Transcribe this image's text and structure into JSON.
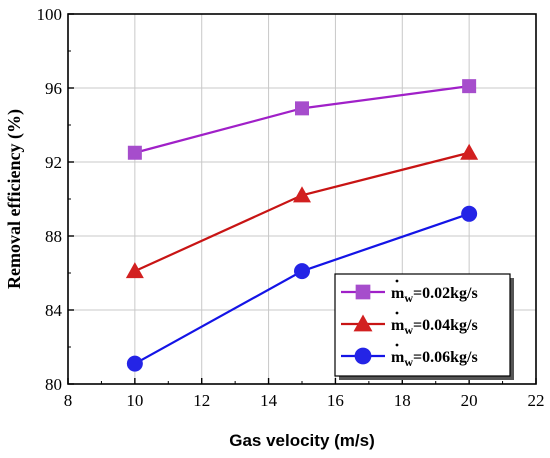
{
  "chart_data": {
    "type": "line",
    "xlabel": "Gas velocity (m/s)",
    "ylabel": "Removal efficiency  (%)",
    "xlim": [
      8,
      22
    ],
    "ylim": [
      80,
      100
    ],
    "x_ticks": [
      8,
      10,
      12,
      14,
      16,
      18,
      20,
      22
    ],
    "y_ticks": [
      80,
      84,
      88,
      92,
      96,
      100
    ],
    "grid": true,
    "legend_position": "bottom-right",
    "x": [
      10,
      15,
      20
    ],
    "series": [
      {
        "name": "ṁw=0.02kg/s",
        "name_base": "m",
        "name_sub": "w",
        "name_rest": "=0.02kg/s",
        "marker": "square",
        "color": "#a64dcc",
        "line_color": "#a020c8",
        "values": [
          92.5,
          94.9,
          96.1
        ]
      },
      {
        "name": "ṁw=0.04kg/s",
        "name_base": "m",
        "name_sub": "w",
        "name_rest": "=0.04kg/s",
        "marker": "triangle",
        "color": "#d22020",
        "line_color": "#c81414",
        "values": [
          86.1,
          90.2,
          92.5
        ]
      },
      {
        "name": "ṁw=0.06kg/s",
        "name_base": "m",
        "name_sub": "w",
        "name_rest": "=0.06kg/s",
        "marker": "circle",
        "color": "#2424e6",
        "line_color": "#1414e6",
        "values": [
          81.1,
          86.1,
          89.2
        ]
      }
    ]
  }
}
